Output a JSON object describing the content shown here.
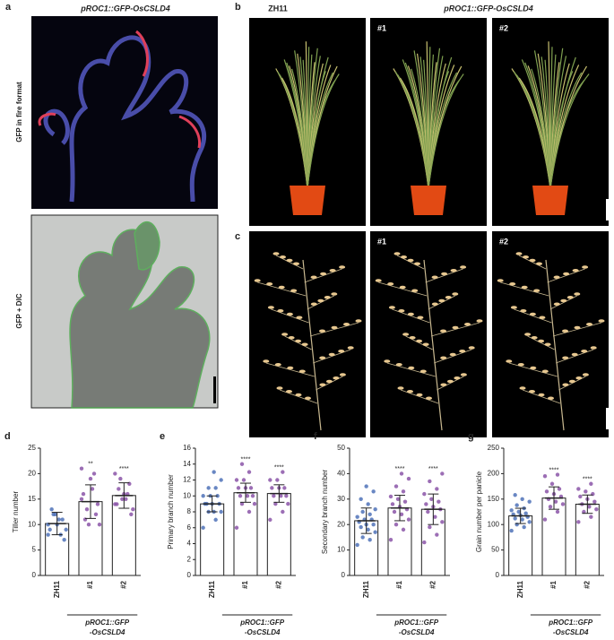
{
  "panels": {
    "a": {
      "label": "a",
      "title": "pROC1::GFP-OsCSLD4",
      "rows": [
        "GFP in fire format",
        "GFP + DIC"
      ]
    },
    "b": {
      "label": "b",
      "title": "pROC1::GFP-OsCSLD4",
      "plants": [
        "ZH11",
        "#1",
        "#2"
      ]
    },
    "c": {
      "label": "c",
      "plants": [
        "#1",
        "#2"
      ]
    }
  },
  "chart_data": [
    {
      "type": "bar",
      "label": "d",
      "ylabel": "Tiller number",
      "categories": [
        "ZH11",
        "#1",
        "#2"
      ],
      "group_label": [
        "pROC1::GFP",
        "-OsCSLD4"
      ],
      "colors": [
        "#4f72b8",
        "#8b55a8",
        "#8b55a8"
      ],
      "values": [
        10.2,
        14.5,
        15.7
      ],
      "errors": [
        2.2,
        3.3,
        2.5
      ],
      "significance": [
        null,
        "**",
        "****"
      ],
      "points": [
        [
          10,
          8,
          12,
          9,
          11,
          13,
          7,
          10,
          9,
          11,
          12,
          8
        ],
        [
          15,
          20,
          13,
          10,
          17,
          11,
          14,
          19,
          16,
          12,
          10,
          21
        ],
        [
          14,
          16,
          19,
          13,
          15,
          17,
          12,
          16,
          14,
          18,
          15,
          20
        ]
      ],
      "ylim": [
        0,
        25
      ],
      "yticks": [
        0,
        5,
        10,
        15,
        20,
        25
      ]
    },
    {
      "type": "bar",
      "label": "e",
      "ylabel": "Primary branch number",
      "categories": [
        "ZH11",
        "#1",
        "#2"
      ],
      "group_label": [
        "pROC1::GFP",
        "-OsCSLD4"
      ],
      "colors": [
        "#4f72b8",
        "#8b55a8",
        "#8b55a8"
      ],
      "values": [
        9.0,
        10.4,
        10.3
      ],
      "errors": [
        1.0,
        1.2,
        1.1
      ],
      "significance": [
        null,
        "****",
        "****"
      ],
      "points": [
        [
          6,
          7,
          8,
          8,
          8,
          9,
          9,
          9,
          9,
          10,
          10,
          10,
          11,
          11,
          12,
          13
        ],
        [
          6,
          8,
          9,
          9,
          10,
          10,
          10,
          11,
          11,
          11,
          12,
          12,
          13,
          14
        ],
        [
          7,
          8,
          9,
          9,
          10,
          10,
          10,
          11,
          11,
          11,
          12,
          12,
          13
        ]
      ],
      "ylim": [
        0,
        16
      ],
      "yticks": [
        0,
        2,
        4,
        6,
        8,
        10,
        12,
        14,
        16
      ]
    },
    {
      "type": "bar",
      "label": "f",
      "ylabel": "Secondary branch number",
      "categories": [
        "ZH11",
        "#1",
        "#2"
      ],
      "group_label": [
        "pROC1::GFP",
        "-OsCSLD4"
      ],
      "colors": [
        "#4f72b8",
        "#8b55a8",
        "#8b55a8"
      ],
      "values": [
        21.5,
        26.5,
        26
      ],
      "errors": [
        5,
        5,
        6
      ],
      "significance": [
        null,
        "****",
        "****"
      ],
      "points": [
        [
          12,
          14,
          15,
          17,
          18,
          19,
          20,
          20,
          21,
          22,
          22,
          23,
          24,
          25,
          26,
          28,
          30,
          33,
          35
        ],
        [
          14,
          18,
          20,
          22,
          24,
          25,
          26,
          27,
          28,
          29,
          30,
          31,
          33,
          35,
          38,
          40
        ],
        [
          13,
          16,
          19,
          21,
          23,
          25,
          26,
          27,
          28,
          29,
          30,
          32,
          34,
          37,
          40
        ]
      ],
      "ylim": [
        0,
        50
      ],
      "yticks": [
        0,
        10,
        20,
        30,
        40,
        50
      ]
    },
    {
      "type": "bar",
      "label": "g",
      "ylabel": "Grain number per panicle",
      "categories": [
        "ZH11",
        "#1",
        "#2"
      ],
      "group_label": [
        "pROC1::GFP",
        "-OsCSLD4"
      ],
      "colors": [
        "#4f72b8",
        "#8b55a8",
        "#8b55a8"
      ],
      "values": [
        117,
        152,
        140
      ],
      "errors": [
        15,
        22,
        18
      ],
      "significance": [
        null,
        "****",
        "****"
      ],
      "points": [
        [
          88,
          95,
          100,
          105,
          110,
          112,
          115,
          118,
          120,
          122,
          125,
          128,
          132,
          138,
          145,
          150,
          158
        ],
        [
          110,
          125,
          135,
          140,
          145,
          150,
          155,
          160,
          165,
          170,
          180,
          195,
          198
        ],
        [
          105,
          115,
          125,
          130,
          135,
          140,
          145,
          150,
          155,
          160,
          165,
          170,
          180
        ]
      ],
      "ylim": [
        0,
        250
      ],
      "yticks": [
        0,
        50,
        100,
        150,
        200,
        250
      ]
    }
  ]
}
